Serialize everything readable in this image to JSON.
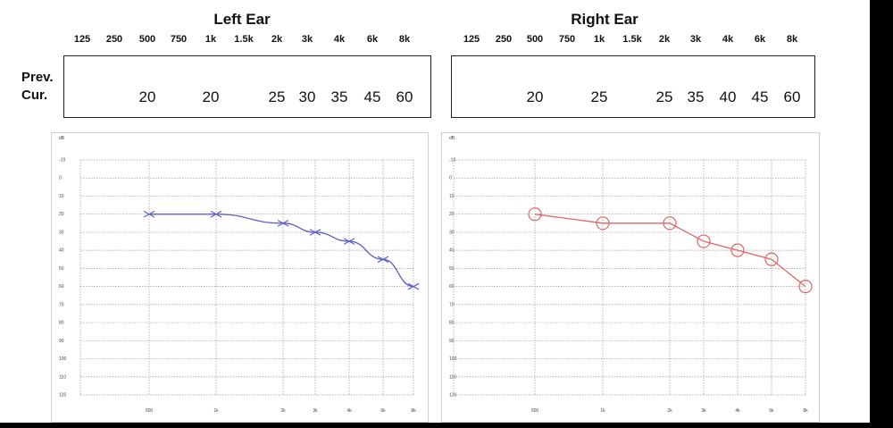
{
  "chart_data": [
    {
      "type": "line",
      "title": "Left Ear",
      "header_frequencies": [
        "125",
        "250",
        "500",
        "750",
        "1k",
        "1.5k",
        "2k",
        "3k",
        "4k",
        "6k",
        "8k"
      ],
      "row_labels": [
        "Prev.",
        "Cur."
      ],
      "previous": [],
      "current": [
        {
          "freq": "500",
          "value": "20"
        },
        {
          "freq": "1k",
          "value": "20"
        },
        {
          "freq": "2k",
          "value": "25"
        },
        {
          "freq": "3k",
          "value": "30"
        },
        {
          "freq": "4k",
          "value": "35"
        },
        {
          "freq": "6k",
          "value": "45"
        },
        {
          "freq": "8k",
          "value": "60"
        }
      ],
      "y_unit": "dB",
      "y_ticks": [
        "-10",
        "0",
        "10",
        "20",
        "30",
        "40",
        "50",
        "60",
        "70",
        "80",
        "90",
        "100",
        "110",
        "120"
      ],
      "ylim": [
        -10,
        120
      ],
      "y_inverted": true,
      "x_ticks": [
        "500",
        "1k",
        "2k",
        "3k",
        "4k",
        "6k",
        "8k"
      ],
      "x": [
        "500",
        "1k",
        "2k",
        "3k",
        "4k",
        "6k",
        "8k"
      ],
      "series": [
        {
          "marker": "x",
          "values": [
            20,
            20,
            25,
            30,
            35,
            45,
            60
          ]
        }
      ],
      "color": "#5b5fc7",
      "grid": true
    },
    {
      "type": "line",
      "title": "Right Ear",
      "header_frequencies": [
        "125",
        "250",
        "500",
        "750",
        "1k",
        "1.5k",
        "2k",
        "3k",
        "4k",
        "6k",
        "8k"
      ],
      "row_labels": [
        "Prev.",
        "Cur."
      ],
      "previous": [],
      "current": [
        {
          "freq": "500",
          "value": "20"
        },
        {
          "freq": "1k",
          "value": "25"
        },
        {
          "freq": "2k",
          "value": "25"
        },
        {
          "freq": "3k",
          "value": "35"
        },
        {
          "freq": "4k",
          "value": "40"
        },
        {
          "freq": "6k",
          "value": "45"
        },
        {
          "freq": "8k",
          "value": "60"
        }
      ],
      "y_unit": "dB",
      "y_ticks": [
        "-10",
        "0",
        "10",
        "20",
        "30",
        "40",
        "50",
        "60",
        "70",
        "80",
        "90",
        "100",
        "110",
        "120"
      ],
      "ylim": [
        -10,
        120
      ],
      "y_inverted": true,
      "x_ticks": [
        "500",
        "1k",
        "2k",
        "3k",
        "4k",
        "6k",
        "8k"
      ],
      "x": [
        "500",
        "1k",
        "2k",
        "3k",
        "4k",
        "6k",
        "8k"
      ],
      "series": [
        {
          "marker": "circle",
          "values": [
            20,
            25,
            25,
            35,
            40,
            45,
            60
          ]
        }
      ],
      "color": "#e06666",
      "grid": true
    }
  ]
}
